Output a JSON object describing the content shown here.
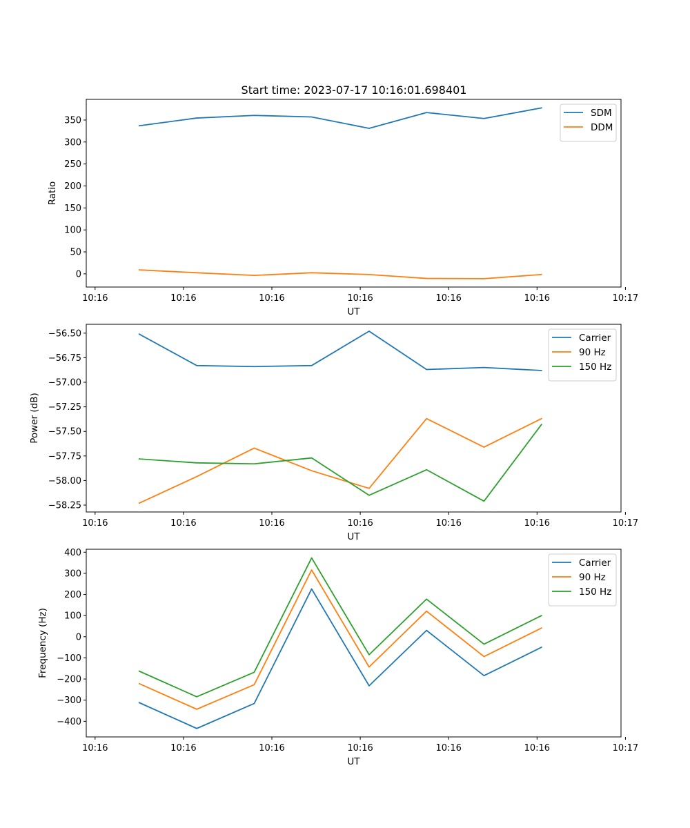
{
  "figure_title": "Start time: 2023-07-17 10:16:01.698401",
  "chart_data": [
    {
      "type": "line",
      "title": "Start time: 2023-07-17 10:16:01.698401",
      "xlabel": "UT",
      "ylabel": "Ratio",
      "x_ticks": [
        "10:16",
        "10:16",
        "10:16",
        "10:16",
        "10:16",
        "10:16",
        "10:17"
      ],
      "x_tick_positions": [
        0,
        1,
        2,
        3,
        4,
        5,
        6
      ],
      "xlim": [
        -0.1,
        5.95
      ],
      "ylim": [
        -30,
        397
      ],
      "y_ticks": [
        0,
        50,
        100,
        150,
        200,
        250,
        300,
        350
      ],
      "y_tick_labels": [
        "0",
        "50",
        "100",
        "150",
        "200",
        "250",
        "300",
        "350"
      ],
      "x": [
        0.5,
        1.15,
        1.8,
        2.45,
        3.1,
        3.75,
        4.4,
        5.05
      ],
      "series": [
        {
          "name": "SDM",
          "color": "#1f77b4",
          "values": [
            337,
            354.5,
            360.5,
            357,
            331,
            367,
            353.5,
            377.5
          ]
        },
        {
          "name": "DDM",
          "color": "#ff7f0e",
          "values": [
            9,
            2.5,
            -3.5,
            2.5,
            -1.5,
            -10.5,
            -11,
            -1.5
          ]
        }
      ],
      "legend": "top-right"
    },
    {
      "type": "line",
      "title": "",
      "xlabel": "UT",
      "ylabel": "Power (dB)",
      "x_ticks": [
        "10:16",
        "10:16",
        "10:16",
        "10:16",
        "10:16",
        "10:16",
        "10:17"
      ],
      "x_tick_positions": [
        0,
        1,
        2,
        3,
        4,
        5,
        6
      ],
      "xlim": [
        -0.1,
        5.95
      ],
      "ylim": [
        -58.32,
        -56.41
      ],
      "y_ticks": [
        -58.25,
        -58.0,
        -57.75,
        -57.5,
        -57.25,
        -57.0,
        -56.75,
        -56.5
      ],
      "y_tick_labels": [
        "−58.25",
        "−58.00",
        "−57.75",
        "−57.50",
        "−57.25",
        "−57.00",
        "−56.75",
        "−56.50"
      ],
      "x": [
        0.5,
        1.15,
        1.8,
        2.45,
        3.1,
        3.75,
        4.4,
        5.05
      ],
      "series": [
        {
          "name": "Carrier",
          "color": "#1f77b4",
          "values": [
            -56.51,
            -56.83,
            -56.84,
            -56.83,
            -56.48,
            -56.87,
            -56.85,
            -56.88
          ]
        },
        {
          "name": "90 Hz",
          "color": "#ff7f0e",
          "values": [
            -58.23,
            -57.96,
            -57.67,
            -57.9,
            -58.08,
            -57.37,
            -57.66,
            -57.37
          ]
        },
        {
          "name": "150 Hz",
          "color": "#2ca02c",
          "values": [
            -57.78,
            -57.82,
            -57.83,
            -57.77,
            -58.15,
            -57.89,
            -58.21,
            -57.43
          ]
        }
      ],
      "legend": "top-right"
    },
    {
      "type": "line",
      "title": "",
      "xlabel": "UT",
      "ylabel": "Frequency (Hz)",
      "x_ticks": [
        "10:16",
        "10:16",
        "10:16",
        "10:16",
        "10:16",
        "10:16",
        "10:17"
      ],
      "x_tick_positions": [
        0,
        1,
        2,
        3,
        4,
        5,
        6
      ],
      "xlim": [
        -0.1,
        5.95
      ],
      "ylim": [
        -474,
        414
      ],
      "y_ticks": [
        -400,
        -300,
        -200,
        -100,
        0,
        100,
        200,
        300,
        400
      ],
      "y_tick_labels": [
        "−400",
        "−300",
        "−200",
        "−100",
        "0",
        "100",
        "200",
        "300",
        "400"
      ],
      "x": [
        0.5,
        1.15,
        1.8,
        2.45,
        3.1,
        3.75,
        4.4,
        5.05
      ],
      "series": [
        {
          "name": "Carrier",
          "color": "#1f77b4",
          "values": [
            -312,
            -434,
            -316,
            226,
            -232,
            30,
            -184,
            -50
          ]
        },
        {
          "name": "90 Hz",
          "color": "#ff7f0e",
          "values": [
            -222,
            -343,
            -227,
            316,
            -143,
            121,
            -94,
            41
          ]
        },
        {
          "name": "150 Hz",
          "color": "#2ca02c",
          "values": [
            -163,
            -284,
            -168,
            373,
            -85,
            178,
            -35,
            100
          ]
        }
      ],
      "legend": "top-right"
    }
  ]
}
